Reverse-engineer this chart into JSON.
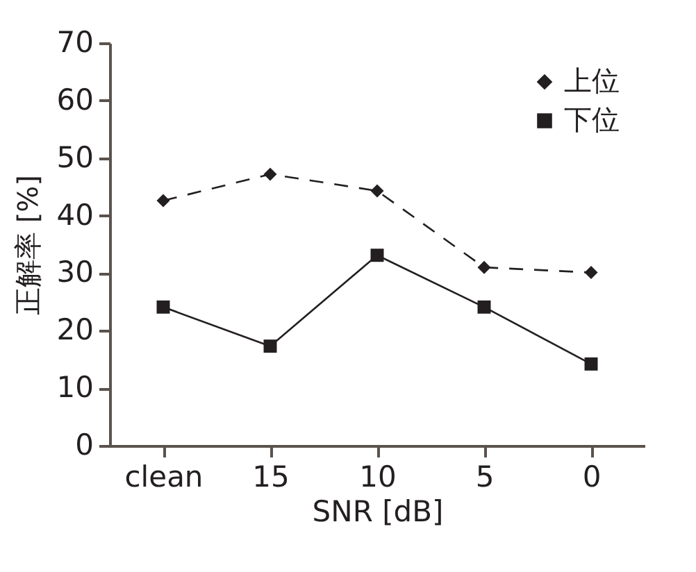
{
  "chart_data": {
    "type": "line",
    "xlabel": "SNR [dB]",
    "ylabel": "正解率 [%]",
    "categories": [
      "clean",
      "15",
      "10",
      "5",
      "0"
    ],
    "ylim": [
      0,
      70
    ],
    "yticks": [
      0,
      10,
      20,
      30,
      40,
      50,
      60,
      70
    ],
    "legend": "top right",
    "grid": false,
    "series": [
      {
        "name": "上位",
        "color": "#231f20",
        "marker": "diamond",
        "line_style": "dashed",
        "values": [
          42.6,
          47.2,
          44.3,
          31.0,
          30.1
        ]
      },
      {
        "name": "下位",
        "color": "#231f20",
        "marker": "square",
        "line_style": "solid",
        "values": [
          24.1,
          17.3,
          33.1,
          24.1,
          14.2
        ]
      }
    ]
  }
}
